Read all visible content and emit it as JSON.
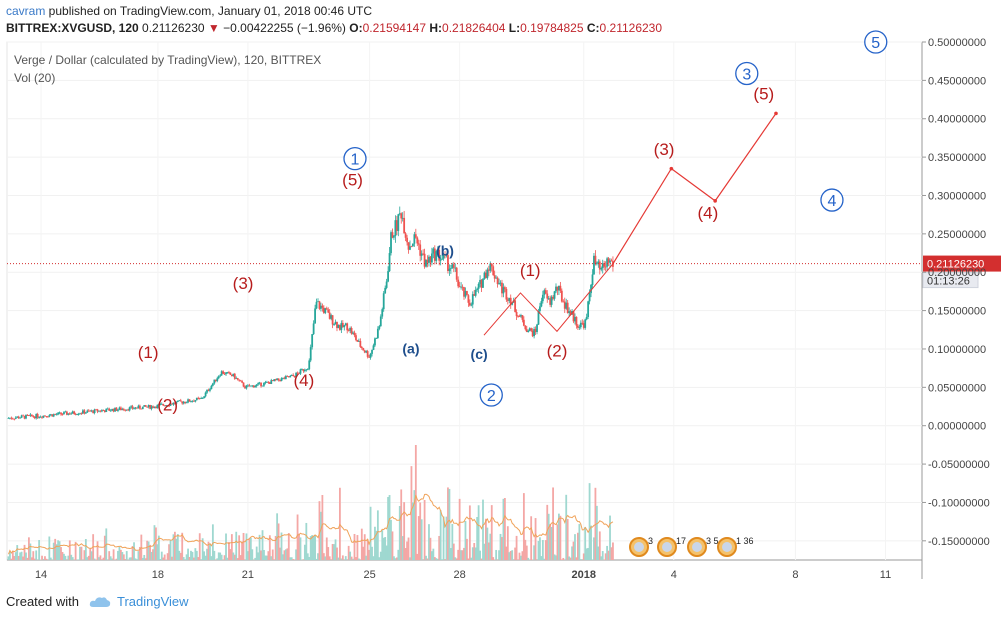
{
  "header": {
    "user": "cavram",
    "published_text": " published on TradingView.com, January 01, 2018 00:46 UTC",
    "symbol": "BITTREX:XVGUSD, 120",
    "last": "0.21126230",
    "change_arrow": "▼",
    "change": "−0.00422255 (−1.96%)",
    "o_label": "O:",
    "o_value": "0.21594147",
    "h_label": "H:",
    "h_value": "0.21826404",
    "l_label": "L:",
    "l_value": "0.19784825",
    "c_label": "C:",
    "c_value": "0.21126230"
  },
  "chart_data": {
    "type": "candlestick",
    "title": "Verge / Dollar (calculated by TradingView), 120, BITTREX",
    "indicator": "Vol (20)",
    "y_axis": {
      "range": [
        -0.175,
        0.5
      ],
      "ticks": [
        "0.50000000",
        "0.45000000",
        "0.40000000",
        "0.35000000",
        "0.30000000",
        "0.25000000",
        "0.20000000",
        "0.15000000",
        "0.10000000",
        "0.05000000",
        "0.00000000",
        "-0.05000000",
        "-0.10000000",
        "-0.15000000"
      ]
    },
    "x_axis": {
      "ticks": [
        "14",
        "18",
        "21",
        "25",
        "28",
        "2018",
        "4",
        "8",
        "11"
      ]
    },
    "price_path": [
      [
        0,
        0.01
      ],
      [
        14,
        0.013
      ],
      [
        40,
        0.02
      ],
      [
        60,
        0.025
      ],
      [
        80,
        0.035
      ],
      [
        88,
        0.07
      ],
      [
        93,
        0.065
      ],
      [
        98,
        0.05
      ],
      [
        106,
        0.055
      ],
      [
        112,
        0.06
      ],
      [
        118,
        0.065
      ],
      [
        124,
        0.078
      ],
      [
        127,
        0.16
      ],
      [
        130,
        0.152
      ],
      [
        133,
        0.14
      ],
      [
        137,
        0.128
      ],
      [
        140,
        0.13
      ],
      [
        145,
        0.105
      ],
      [
        149,
        0.09
      ],
      [
        153,
        0.13
      ],
      [
        156,
        0.19
      ],
      [
        158,
        0.25
      ],
      [
        160,
        0.26
      ],
      [
        162,
        0.28
      ],
      [
        165,
        0.235
      ],
      [
        168,
        0.245
      ],
      [
        172,
        0.21
      ],
      [
        176,
        0.225
      ],
      [
        180,
        0.215
      ],
      [
        184,
        0.2
      ],
      [
        186,
        0.18
      ],
      [
        190,
        0.16
      ],
      [
        194,
        0.18
      ],
      [
        198,
        0.21
      ],
      [
        200,
        0.2
      ],
      [
        203,
        0.18
      ],
      [
        207,
        0.165
      ],
      [
        210,
        0.145
      ],
      [
        214,
        0.125
      ],
      [
        217,
        0.12
      ],
      [
        220,
        0.175
      ],
      [
        223,
        0.16
      ],
      [
        226,
        0.18
      ],
      [
        229,
        0.16
      ],
      [
        232,
        0.145
      ],
      [
        235,
        0.13
      ],
      [
        238,
        0.135
      ],
      [
        241,
        0.215
      ],
      [
        244,
        0.2
      ],
      [
        247,
        0.215
      ],
      [
        249,
        0.211
      ]
    ],
    "candle_color_up": "#26a69a",
    "candle_color_down": "#ef5350",
    "current_price": "0.21126230",
    "countdown": "01:13:26",
    "projection": [
      {
        "x": 249,
        "y": 0.211
      },
      {
        "x": 273,
        "y": 0.335
      },
      {
        "x": 291,
        "y": 0.293
      },
      {
        "x": 316,
        "y": 0.407
      }
    ],
    "wave_labels_red": [
      {
        "text": "(1)",
        "x": 58,
        "y": 0.088
      },
      {
        "text": "(2)",
        "x": 66,
        "y": 0.02
      },
      {
        "text": "(3)",
        "x": 97,
        "y": 0.178
      },
      {
        "text": "(4)",
        "x": 122,
        "y": 0.052
      },
      {
        "text": "(5)",
        "x": 142,
        "y": 0.313
      },
      {
        "text": "(1)",
        "x": 215,
        "y": 0.195
      },
      {
        "text": "(2)",
        "x": 226,
        "y": 0.09
      },
      {
        "text": "(3)",
        "x": 270,
        "y": 0.353
      },
      {
        "text": "(4)",
        "x": 288,
        "y": 0.27
      },
      {
        "text": "(5)",
        "x": 311,
        "y": 0.425
      }
    ],
    "wave_labels_blue": [
      {
        "text": "(a)",
        "x": 166,
        "y": 0.094
      },
      {
        "text": "(b)",
        "x": 180,
        "y": 0.222
      },
      {
        "text": "(c)",
        "x": 194,
        "y": 0.087
      }
    ],
    "circled_labels": [
      {
        "text": "1",
        "x": 143,
        "y": 0.348
      },
      {
        "text": "2",
        "x": 199,
        "y": 0.04
      },
      {
        "text": "3",
        "x": 304,
        "y": 0.459
      },
      {
        "text": "4",
        "x": 339,
        "y": 0.294
      },
      {
        "text": "5",
        "x": 357,
        "y": 0.5
      }
    ],
    "event_badges": [
      "3",
      "17",
      "3",
      "5",
      "1",
      "36"
    ]
  },
  "footer": {
    "created_with": "Created with",
    "brand": "TradingView"
  },
  "colors": {
    "up": "#26a69a",
    "down": "#ef5350",
    "wave_red": "#b71c1c",
    "wave_blue": "#1e4e8c",
    "circle_blue": "#2563c9",
    "projection": "#e53935",
    "price_line": "#d32f2f"
  }
}
